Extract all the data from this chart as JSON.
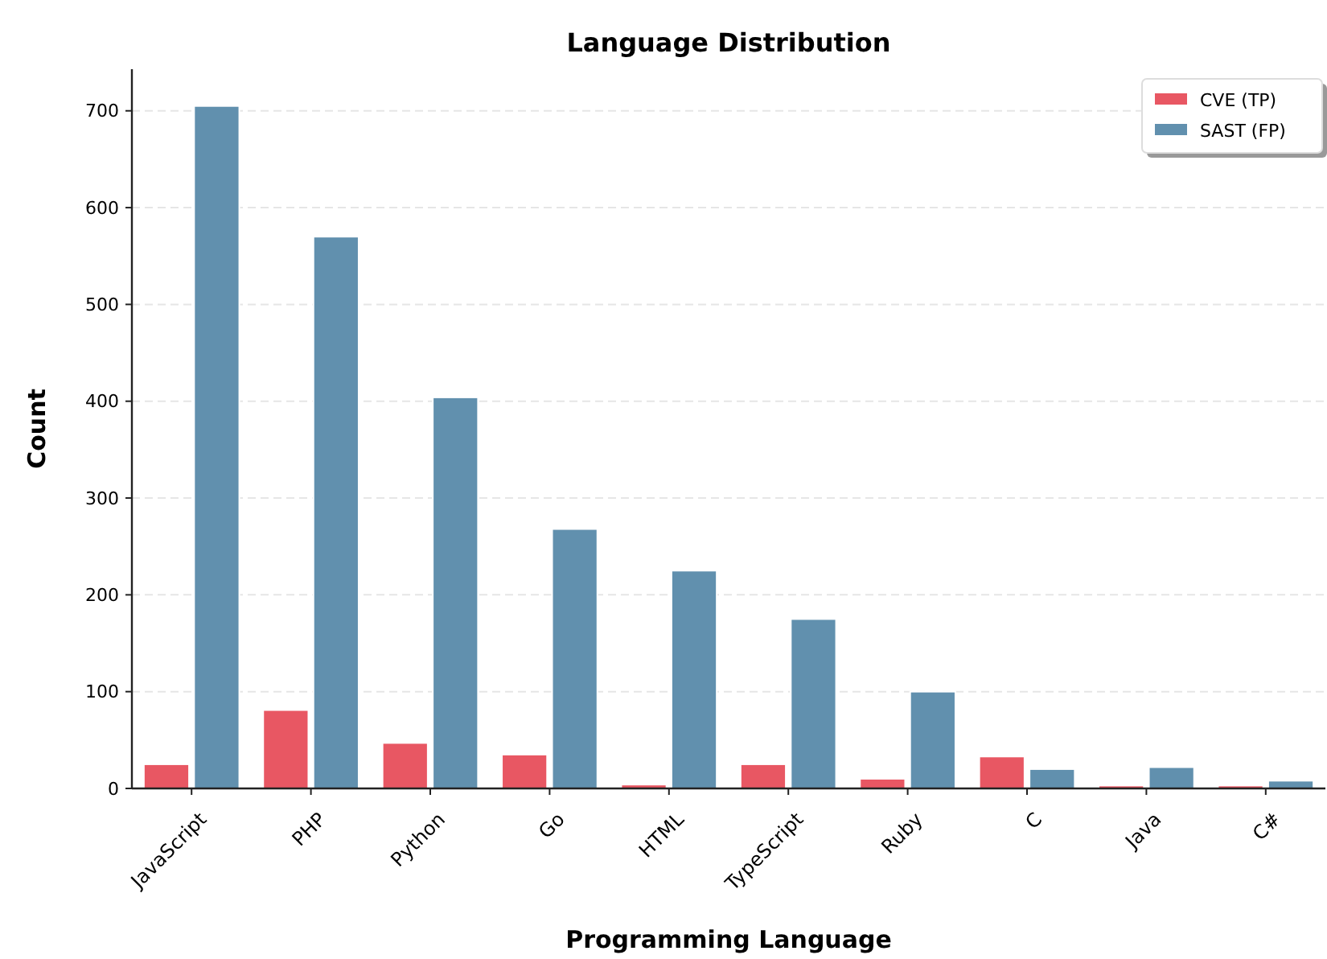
{
  "chart_data": {
    "type": "bar",
    "title": "Language Distribution",
    "xlabel": "Programming Language",
    "ylabel": "Count",
    "categories": [
      "JavaScript",
      "PHP",
      "Python",
      "Go",
      "HTML",
      "TypeScript",
      "Ruby",
      "C",
      "Java",
      "C#"
    ],
    "series": [
      {
        "name": "CVE (TP)",
        "color": "#e85763",
        "values": [
          25,
          81,
          47,
          35,
          4,
          25,
          10,
          33,
          3,
          3
        ]
      },
      {
        "name": "SAST (FP)",
        "color": "#6190ae",
        "values": [
          705,
          570,
          404,
          268,
          225,
          175,
          100,
          20,
          22,
          8
        ]
      }
    ],
    "ylim": [
      0,
      743
    ],
    "yticks": [
      0,
      100,
      200,
      300,
      400,
      500,
      600,
      700
    ],
    "grid": "y",
    "legend": "top right"
  }
}
